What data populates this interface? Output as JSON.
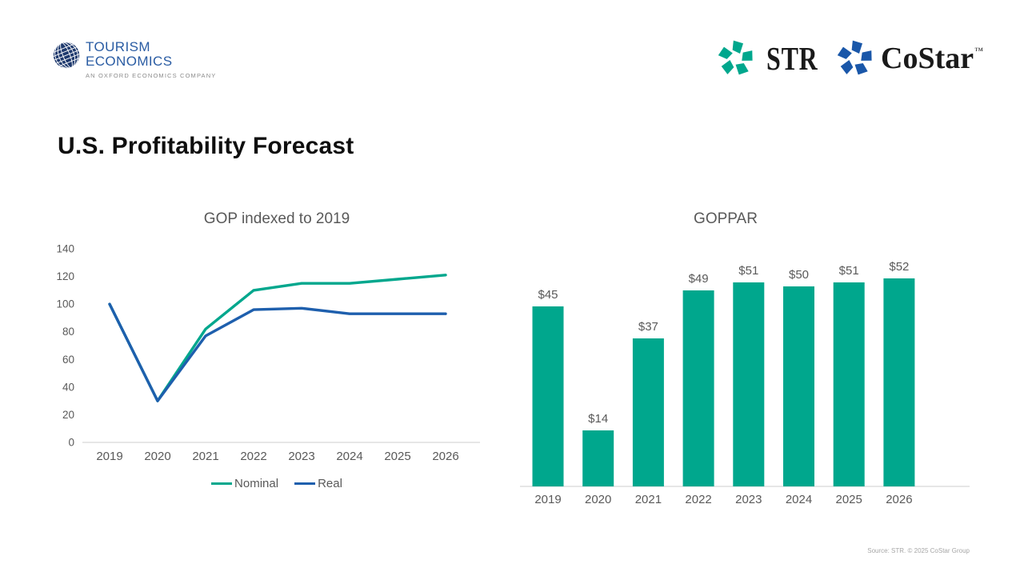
{
  "title": "U.S. Profitability Forecast",
  "header": {
    "tourism_economics": {
      "line1": "TOURISM",
      "line2": "ECONOMICS",
      "tagline": "AN OXFORD ECONOMICS COMPANY"
    },
    "str_label": "STR",
    "costar_label": "CoStar",
    "costar_tm": "™"
  },
  "footer": {
    "source": "Source: STR. © 2025 CoStar Group"
  },
  "colors": {
    "teal": "#00a78d",
    "blue": "#1e5fad",
    "costar_blue": "#1a57a9",
    "navy_globe": "#1f3a6e",
    "logo_text_blue": "#2a5ca3",
    "gray_text": "#595959",
    "axis_line": "#d6d6d6",
    "footer_gray": "#a6a6a6"
  },
  "chart_data": [
    {
      "type": "line",
      "title": "GOP indexed to 2019",
      "x": [
        "2019",
        "2020",
        "2021",
        "2022",
        "2023",
        "2024",
        "2025",
        "2026"
      ],
      "series": [
        {
          "name": "Nominal",
          "color": "#00a78d",
          "values": [
            100,
            30,
            82,
            110,
            115,
            115,
            118,
            121
          ]
        },
        {
          "name": "Real",
          "color": "#1e5fad",
          "values": [
            100,
            30,
            77,
            96,
            97,
            93,
            93,
            93
          ]
        }
      ],
      "ylim": [
        0,
        140
      ],
      "yticks": [
        0,
        20,
        40,
        60,
        80,
        100,
        120,
        140
      ],
      "grid": "off",
      "legend_position": "bottom"
    },
    {
      "type": "bar",
      "title": "GOPPAR",
      "categories": [
        "2019",
        "2020",
        "2021",
        "2022",
        "2023",
        "2024",
        "2025",
        "2026"
      ],
      "values": [
        45,
        14,
        37,
        49,
        51,
        50,
        51,
        52
      ],
      "labels": [
        "$45",
        "$14",
        "$37",
        "$49",
        "$51",
        "$50",
        "$51",
        "$52"
      ],
      "bar_color": "#00a78d",
      "ylim": [
        0,
        62
      ],
      "grid": "off"
    }
  ]
}
